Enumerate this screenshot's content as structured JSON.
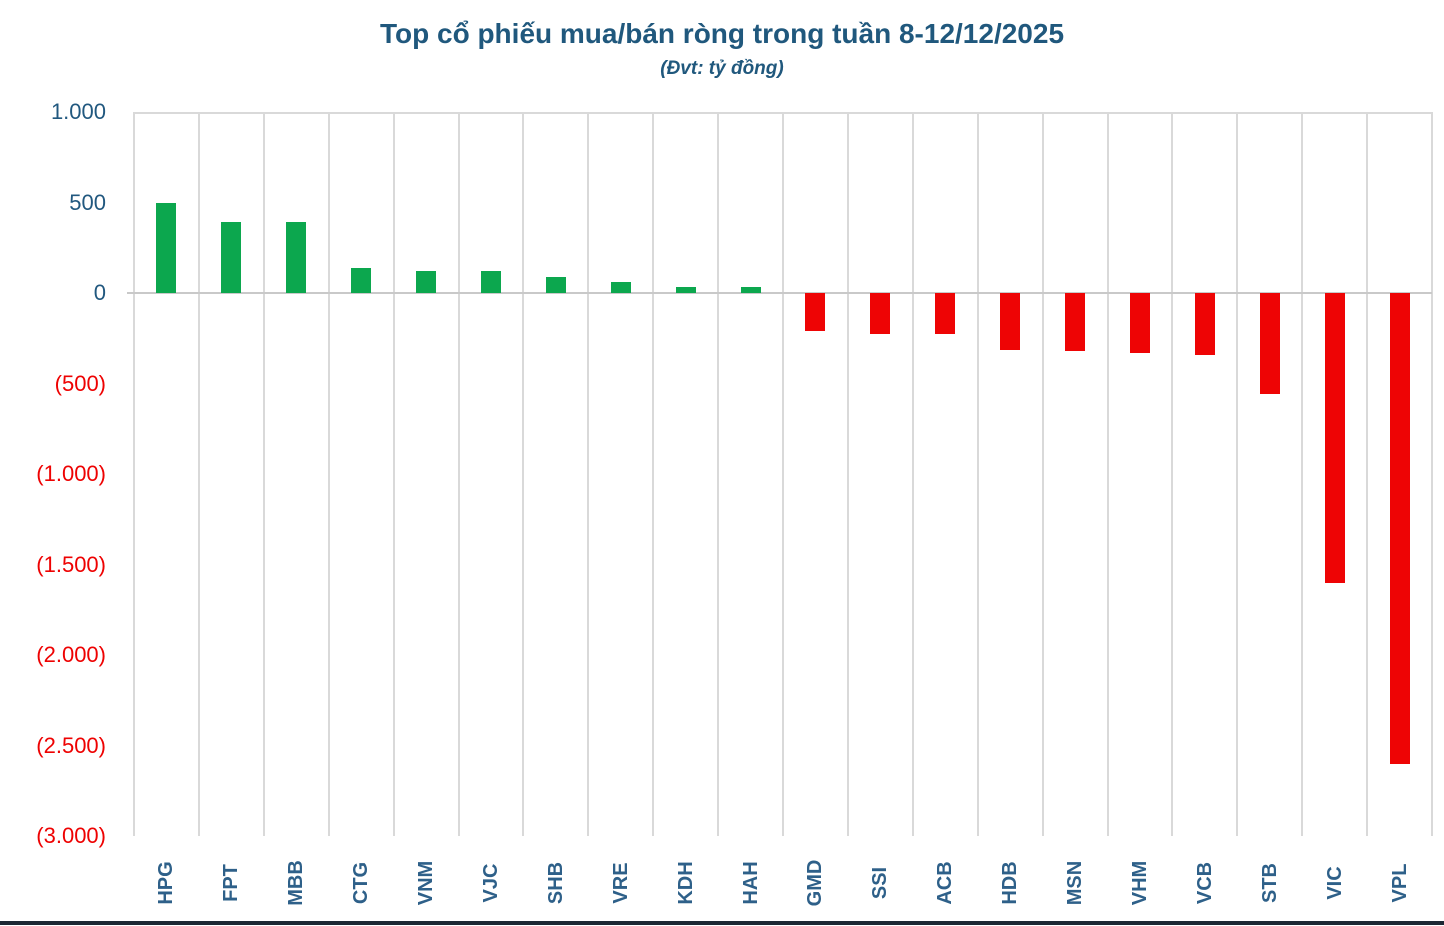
{
  "title": "Top cổ phiếu mua/bán ròng trong tuần 8-12/12/2025",
  "subtitle": "(Đvt: tỷ đồng)",
  "colors": {
    "positive_bar": "#0CA74E",
    "negative_bar": "#EE0405",
    "title_text": "#20587D",
    "ytick_positive": "#21587F",
    "ytick_negative": "#EE0202",
    "xtick_text": "#2E6089",
    "gridline": "#D9D9D9",
    "bottom_border": "#1C2733"
  },
  "chart_data": {
    "type": "bar",
    "title": "Top cổ phiếu mua/bán ròng trong tuần 8-12/12/2025",
    "subtitle_unit": "(Đvt: tỷ đồng)",
    "xlabel": "",
    "ylabel": "tỷ đồng",
    "categories": [
      "HPG",
      "FPT",
      "MBB",
      "CTG",
      "VNM",
      "VJC",
      "SHB",
      "VRE",
      "KDH",
      "HAH",
      "GMD",
      "SSI",
      "ACB",
      "HDB",
      "MSN",
      "VHM",
      "VCB",
      "STB",
      "VIC",
      "VPL"
    ],
    "values": [
      500,
      395,
      395,
      140,
      120,
      120,
      90,
      60,
      32,
      32,
      -210,
      -225,
      -225,
      -315,
      -320,
      -330,
      -340,
      -560,
      -1600,
      -2600
    ],
    "ylim": [
      -3000,
      1000
    ],
    "legend": "none",
    "grid": "vertical category separators, top line at 1000, zero line",
    "yticks": [
      {
        "value": 1000,
        "label": "1.000",
        "negative": false
      },
      {
        "value": 500,
        "label": "500",
        "negative": false
      },
      {
        "value": 0,
        "label": "0",
        "negative": false
      },
      {
        "value": -500,
        "label": "(500)",
        "negative": true
      },
      {
        "value": -1000,
        "label": "(1.000)",
        "negative": true
      },
      {
        "value": -1500,
        "label": "(1.500)",
        "negative": true
      },
      {
        "value": -2000,
        "label": "(2.000)",
        "negative": true
      },
      {
        "value": -2500,
        "label": "(2.500)",
        "negative": true
      },
      {
        "value": -3000,
        "label": "(3.000)",
        "negative": true
      }
    ]
  }
}
